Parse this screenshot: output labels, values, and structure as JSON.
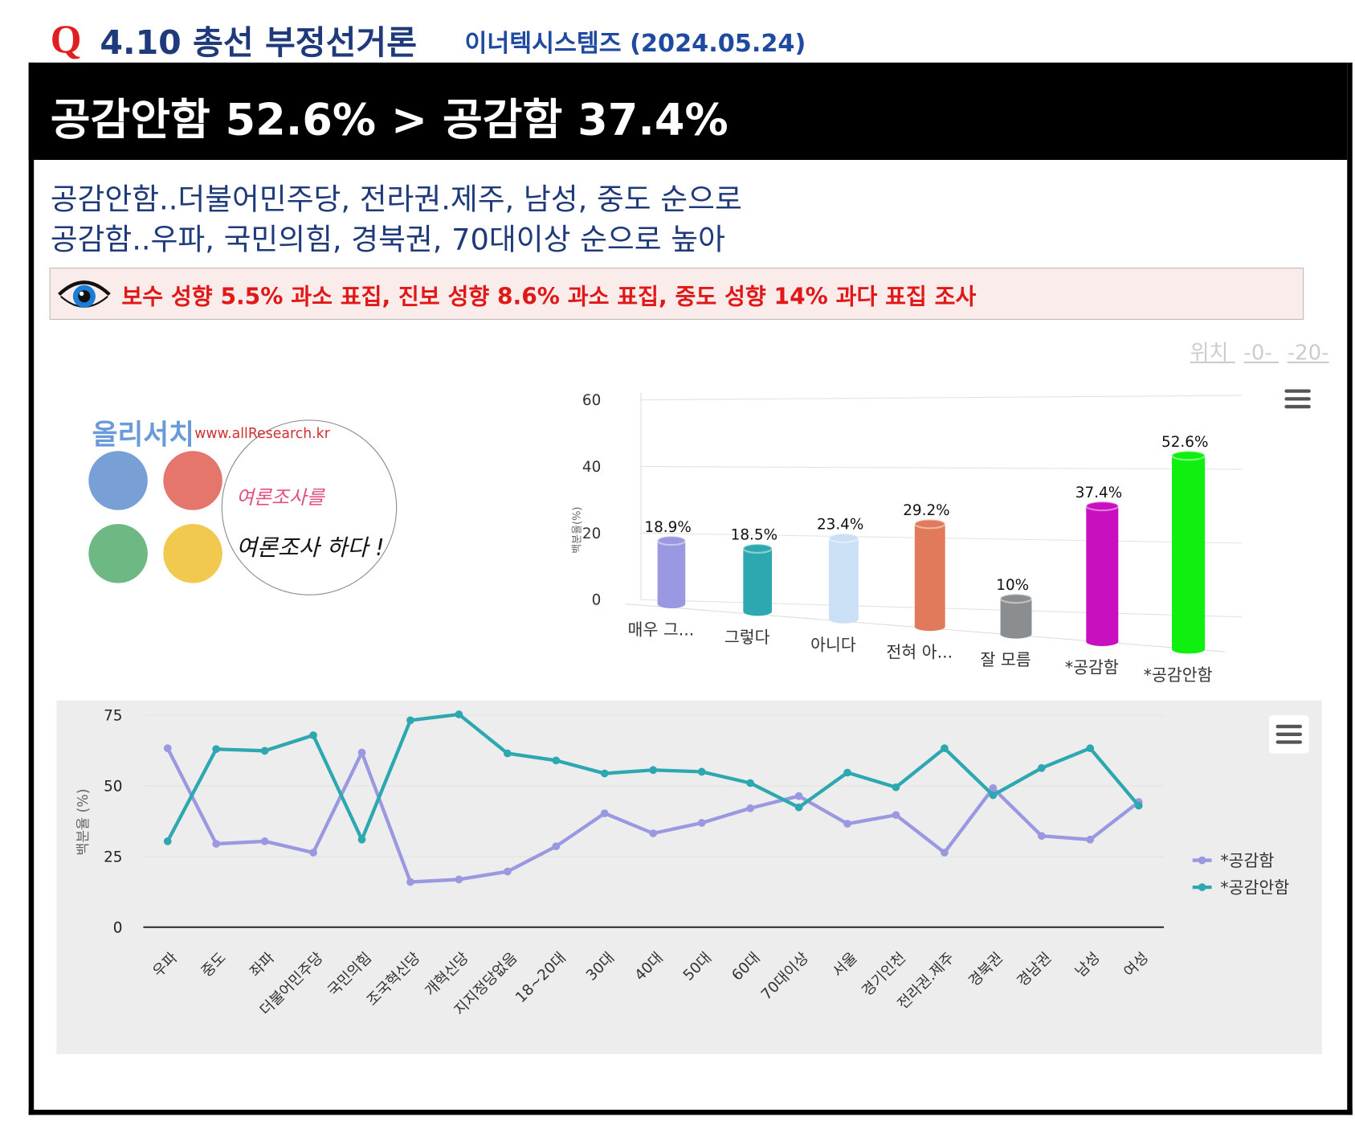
{
  "header": {
    "q_mark": "Q",
    "title": "4.10 총선 부정선거론",
    "source": "이너텍시스템즈 (2024.05.24)"
  },
  "headline": "공감안함 52.6% > 공감함 37.4%",
  "subtitle": [
    "공감안함..더불어민주당, 전라권.제주, 남성, 중도 순으로",
    "공감함..우파, 국민의힘, 경북권, 70대이상 순으로 높아"
  ],
  "notice": {
    "icon": "eye-icon",
    "text": "보수 성향 5.5% 과소 표집, 진보 성향 8.6% 과소 표집, 중도 성향 14% 과다 표집 조사"
  },
  "position_nav": {
    "label": "위치",
    "links": [
      "-0-",
      "-20-"
    ]
  },
  "logo": {
    "brand": "올리서치",
    "url": "www.allResearch.kr",
    "slogan": [
      "여론조사를",
      "여론조사 하다 !"
    ]
  },
  "chart_data": [
    {
      "type": "bar",
      "title": "",
      "ylabel": "백분율(%)",
      "ylim": [
        0,
        60
      ],
      "yticks": [
        0,
        20,
        40,
        60
      ],
      "categories": [
        "매우 그...",
        "그렇다",
        "아니다",
        "전혀 아...",
        "잘 모름",
        "*공감함",
        "*공감안함"
      ],
      "values": [
        18.9,
        18.5,
        23.4,
        29.2,
        10,
        37.4,
        52.6
      ],
      "data_labels": [
        "18.9%",
        "18.5%",
        "23.4%",
        "29.2%",
        "10%",
        "37.4%",
        "52.6%"
      ],
      "colors": [
        "#9a98e0",
        "#2ea8b0",
        "#c9e0f5",
        "#e07a5a",
        "#8a8e91",
        "#c810c0",
        "#10f010"
      ]
    },
    {
      "type": "line",
      "title": "",
      "ylabel": "백분율 (%)",
      "ylim": [
        0,
        75
      ],
      "yticks": [
        0,
        25,
        50,
        75
      ],
      "categories": [
        "우파",
        "중도",
        "좌파",
        "더불어민주당",
        "국민의힘",
        "조국혁신당",
        "개혁신당",
        "지지정당없음",
        "18~20대",
        "30대",
        "40대",
        "50대",
        "60대",
        "70대이상",
        "서울",
        "경기인천",
        "전라권.제주",
        "경북권",
        "경남권",
        "남성",
        "여성"
      ],
      "series": [
        {
          "name": "*공감함",
          "color": "#9a98e0",
          "values": [
            63.3,
            29.5,
            30.4,
            26.4,
            61.8,
            16.0,
            16.9,
            19.7,
            28.6,
            40.3,
            33.2,
            36.9,
            42.1,
            46.4,
            36.6,
            39.7,
            26.4,
            49.2,
            32.3,
            31.0,
            44.3
          ]
        },
        {
          "name": "*공감안함",
          "color": "#2ea8b0",
          "values": [
            30.4,
            63.0,
            62.4,
            67.9,
            31.0,
            73.2,
            75.3,
            61.5,
            59.0,
            54.4,
            55.6,
            55.0,
            51.0,
            42.4,
            54.7,
            49.5,
            63.3,
            46.7,
            56.3,
            63.3,
            43.0
          ]
        }
      ],
      "legend_position": "right"
    }
  ]
}
